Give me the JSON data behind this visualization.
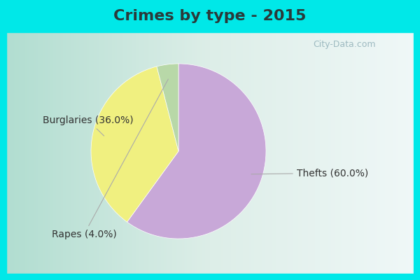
{
  "title": "Crimes by type - 2015",
  "slices": [
    {
      "label": "Thefts (60.0%)",
      "value": 60.0,
      "color": "#c8a8d8"
    },
    {
      "label": "Burglaries (36.0%)",
      "value": 36.0,
      "color": "#f0f080"
    },
    {
      "label": "Rapes (4.0%)",
      "value": 4.0,
      "color": "#b8d8a8"
    }
  ],
  "background_top": "#00e8e8",
  "background_left": "#b8e8d8",
  "background_right": "#e8f0f0",
  "title_fontsize": 16,
  "label_fontsize": 10,
  "startangle": 90,
  "watermark": "City-Data.com",
  "border_color": "#00e8e8",
  "border_width": 8
}
